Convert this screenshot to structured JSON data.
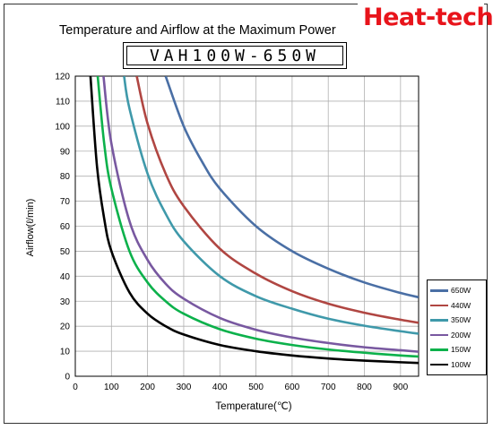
{
  "brand": {
    "name": "Heat-tech",
    "color": "#e8141b"
  },
  "model": "VAH100W-650W",
  "chart_data": {
    "type": "line",
    "title": "Temperature and Airflow at the Maximum Power",
    "xlabel": "Temperature(℃)",
    "ylabel": "Airflow(ℓ/min)",
    "xlim": [
      0,
      950
    ],
    "ylim": [
      0,
      120
    ],
    "xticks": [
      0,
      100,
      200,
      300,
      400,
      500,
      600,
      700,
      800,
      900
    ],
    "yticks": [
      0,
      10,
      20,
      30,
      40,
      50,
      60,
      70,
      80,
      90,
      100,
      110,
      120
    ],
    "grid": true,
    "legend_position": "bottom-right",
    "series": [
      {
        "name": "650W",
        "color": "#4a6fa5",
        "x": [
          250,
          300,
          350,
          400,
          500,
          600,
          700,
          800,
          900,
          950
        ],
        "y": [
          120,
          100,
          86,
          75,
          60,
          50,
          43,
          37.5,
          33.3,
          31.6
        ]
      },
      {
        "name": "440W",
        "color": "#b04642",
        "x": [
          170,
          200,
          250,
          300,
          400,
          500,
          600,
          700,
          800,
          900,
          950
        ],
        "y": [
          120,
          101,
          81,
          68,
          51,
          41,
          34,
          29,
          25.4,
          22.6,
          21.4
        ]
      },
      {
        "name": "350W",
        "color": "#3f99aa",
        "x": [
          135,
          150,
          200,
          250,
          300,
          400,
          500,
          600,
          700,
          800,
          900,
          950
        ],
        "y": [
          120,
          107,
          81,
          65,
          54,
          40,
          32,
          27,
          23,
          20.2,
          18,
          17
        ]
      },
      {
        "name": "200W",
        "color": "#7858a0",
        "x": [
          78,
          100,
          150,
          200,
          250,
          300,
          400,
          500,
          600,
          700,
          800,
          900,
          950
        ],
        "y": [
          120,
          93,
          62,
          46.5,
          37,
          31,
          23.3,
          18.6,
          15.5,
          13.3,
          11.6,
          10.4,
          9.8
        ]
      },
      {
        "name": "150W",
        "color": "#0cb14b",
        "x": [
          62,
          80,
          100,
          150,
          200,
          250,
          300,
          400,
          500,
          600,
          700,
          800,
          900,
          950
        ],
        "y": [
          120,
          93,
          75,
          50,
          37.5,
          30,
          25,
          18.8,
          15,
          12.5,
          10.7,
          9.4,
          8.3,
          7.9
        ]
      },
      {
        "name": "100W",
        "color": "#000000",
        "x": [
          42,
          60,
          80,
          100,
          150,
          200,
          250,
          300,
          400,
          500,
          600,
          700,
          800,
          900,
          950
        ],
        "y": [
          120,
          84,
          63,
          50,
          33.5,
          25,
          20,
          16.7,
          12.5,
          10,
          8.3,
          7.1,
          6.25,
          5.6,
          5.3
        ]
      }
    ]
  }
}
